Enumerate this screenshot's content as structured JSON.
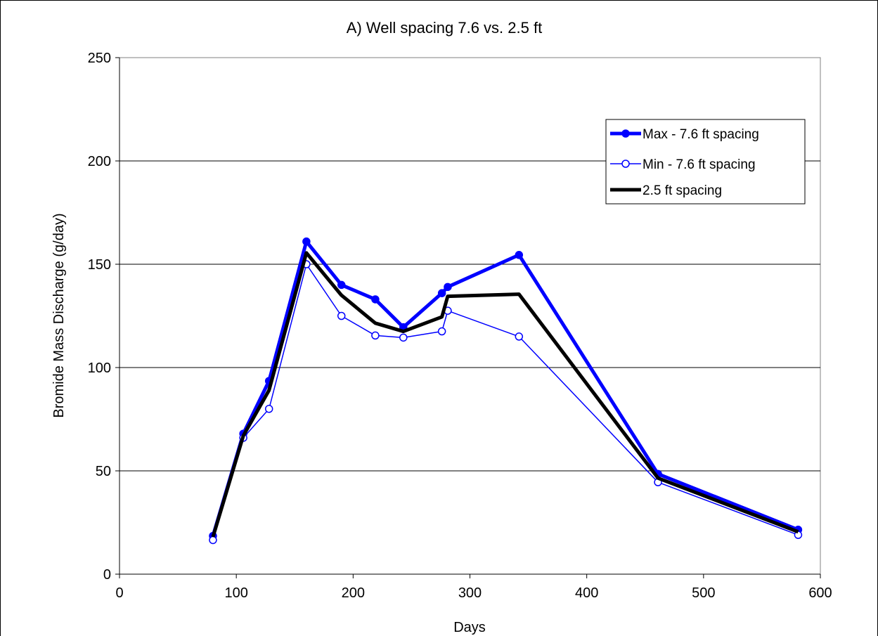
{
  "chart_data": {
    "type": "line",
    "title": "A) Well spacing 7.6 vs. 2.5 ft",
    "xlabel": "Days",
    "ylabel": "Bromide Mass Discharge (g/day)",
    "xlim": [
      0,
      600
    ],
    "ylim": [
      0,
      250
    ],
    "xticks": [
      0,
      100,
      200,
      300,
      400,
      500,
      600
    ],
    "yticks": [
      0,
      50,
      100,
      150,
      200,
      250
    ],
    "grid": "horizontal",
    "legend_position": "top-right",
    "series": [
      {
        "name": "Max -  7.6 ft spacing",
        "color": "#0000ff",
        "style": "thick-filled-circle",
        "x": [
          80,
          106,
          128,
          160,
          190,
          219,
          243,
          276,
          281,
          342,
          461,
          581
        ],
        "y": [
          18.5,
          68,
          93.5,
          161,
          140,
          133,
          119.5,
          136,
          139,
          154.5,
          48.5,
          21.5
        ]
      },
      {
        "name": "Min -  7.6 ft spacing",
        "color": "#0000ff",
        "style": "thin-open-circle",
        "x": [
          80,
          106,
          128,
          160,
          190,
          219,
          243,
          276,
          281,
          342,
          461,
          581
        ],
        "y": [
          16.5,
          66,
          80,
          150,
          125,
          115.5,
          114.5,
          117.5,
          127.5,
          115,
          44.5,
          19
        ]
      },
      {
        "name": "2.5 ft spacing",
        "color": "#000000",
        "style": "thick-line",
        "x": [
          80,
          106,
          128,
          160,
          190,
          219,
          243,
          276,
          281,
          342,
          461,
          581
        ],
        "y": [
          18,
          67,
          89,
          155.5,
          135,
          121.5,
          117.5,
          124.5,
          134.5,
          135.5,
          46.5,
          20.5
        ]
      }
    ]
  }
}
